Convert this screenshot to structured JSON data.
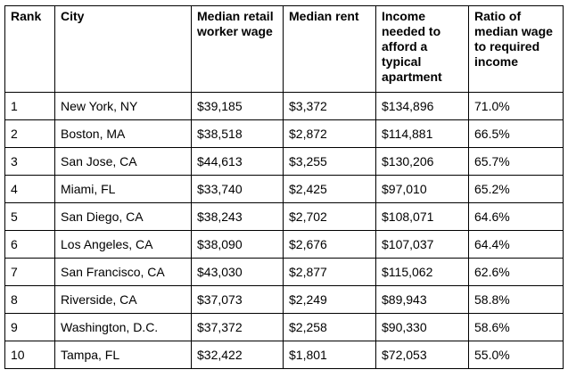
{
  "table": {
    "headers": [
      "Rank",
      "City",
      "Median retail worker wage",
      "Median rent",
      "Income needed to afford a typical apartment",
      "Ratio of median wage to required income"
    ],
    "rows": [
      [
        "1",
        "New York, NY",
        "$39,185",
        "$3,372",
        "$134,896",
        "71.0%"
      ],
      [
        "2",
        "Boston, MA",
        "$38,518",
        "$2,872",
        "$114,881",
        "66.5%"
      ],
      [
        "3",
        "San Jose, CA",
        "$44,613",
        "$3,255",
        "$130,206",
        "65.7%"
      ],
      [
        "4",
        "Miami, FL",
        "$33,740",
        "$2,425",
        "$97,010",
        "65.2%"
      ],
      [
        "5",
        "San Diego, CA",
        "$38,243",
        "$2,702",
        "$108,071",
        "64.6%"
      ],
      [
        "6",
        "Los Angeles, CA",
        "$38,090",
        "$2,676",
        "$107,037",
        "64.4%"
      ],
      [
        "7",
        "San Francisco, CA",
        "$43,030",
        "$2,877",
        "$115,062",
        "62.6%"
      ],
      [
        "8",
        "Riverside, CA",
        "$37,073",
        "$2,249",
        "$89,943",
        "58.8%"
      ],
      [
        "9",
        "Washington, D.C.",
        "$37,372",
        "$2,258",
        "$90,330",
        "58.6%"
      ],
      [
        "10",
        "Tampa, FL",
        "$32,422",
        "$1,801",
        "$72,053",
        "55.0%"
      ]
    ]
  }
}
